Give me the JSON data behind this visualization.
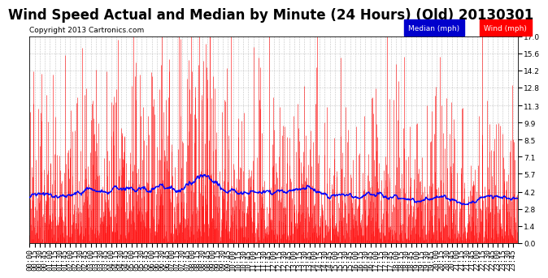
{
  "title": "Wind Speed Actual and Median by Minute (24 Hours) (Old) 20130301",
  "copyright": "Copyright 2013 Cartronics.com",
  "yticks": [
    0.0,
    1.4,
    2.8,
    4.2,
    5.7,
    7.1,
    8.5,
    9.9,
    11.3,
    12.8,
    14.2,
    15.6,
    17.0
  ],
  "ylim": [
    0.0,
    17.0
  ],
  "wind_color": "#ff0000",
  "median_color": "#0000ff",
  "background_color": "#ffffff",
  "grid_color": "#aaaaaa",
  "legend_median_bg": "#0000cc",
  "legend_wind_bg": "#ff0000",
  "title_fontsize": 12,
  "copyright_fontsize": 6.5,
  "tick_fontsize": 6.5,
  "n_minutes": 1440,
  "seed": 42,
  "median_base": 4.0,
  "wind_base": 4.2,
  "wind_std": 1.8
}
